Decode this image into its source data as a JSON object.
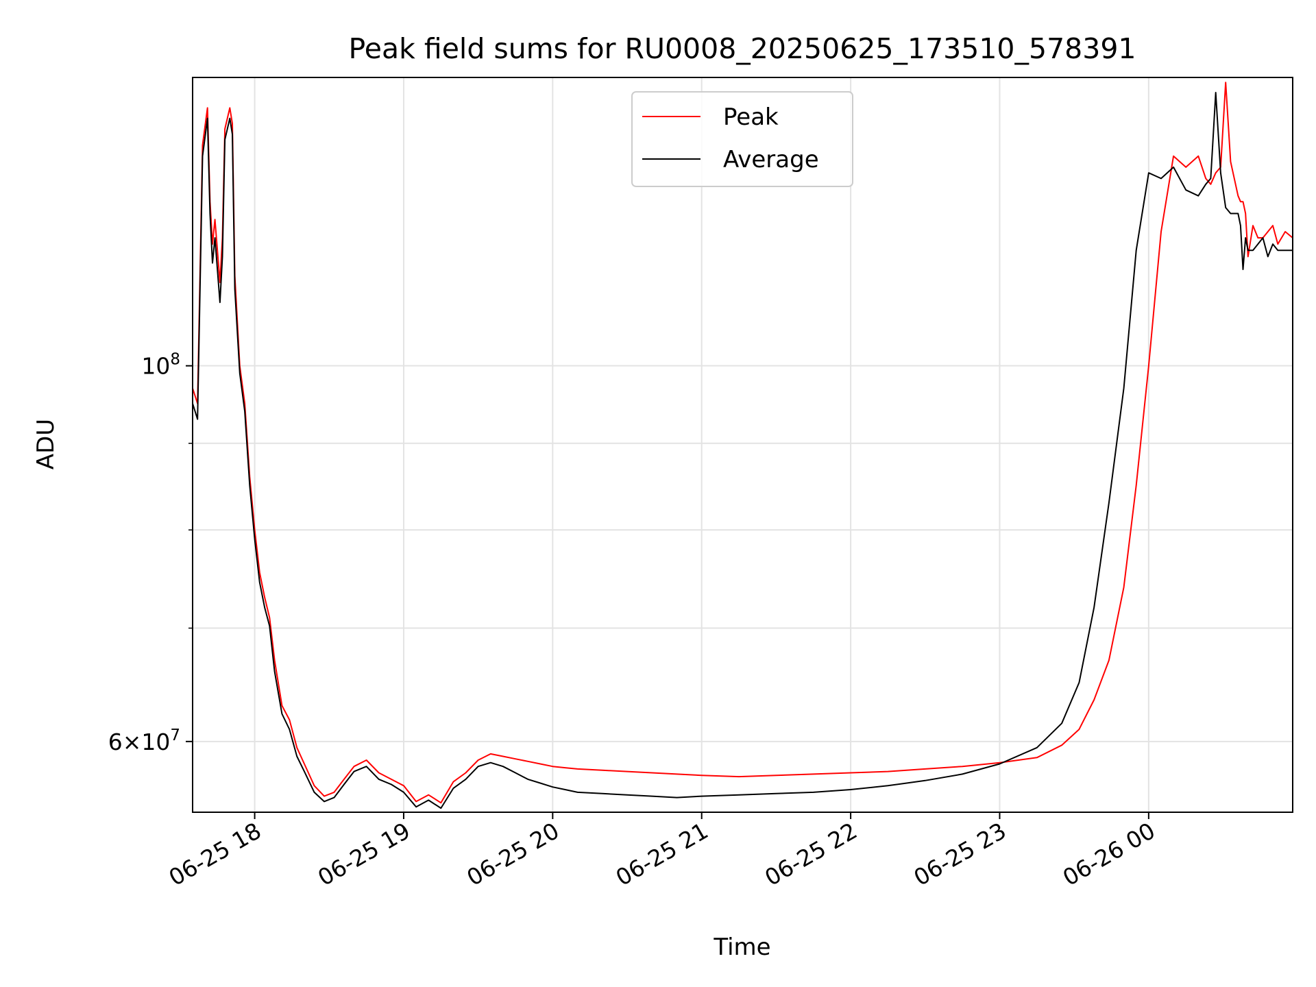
{
  "chart_data": {
    "type": "line",
    "title": "Peak field sums for RU0008_20250625_173510_578391",
    "xlabel": "Time",
    "ylabel": "ADU",
    "yscale": "log",
    "xlim": [
      "2025-06-25 17:35",
      "2025-06-26 00:58"
    ],
    "ylim": [
      54500000,
      148000000
    ],
    "grid": true,
    "legend_position": "upper center",
    "x_ticks": [
      "06-25 18",
      "06-25 19",
      "06-25 20",
      "06-25 21",
      "06-25 22",
      "06-25 23",
      "06-26 00"
    ],
    "y_tick_labels": [
      {
        "value": 100000000,
        "base": "10",
        "exp": "8"
      },
      {
        "value": 60000000,
        "mantissa": "6",
        "base": "10",
        "exp": "7"
      }
    ],
    "y_minor_ticks": [
      70000000,
      80000000,
      90000000
    ],
    "colors": {
      "Peak": "#ff0000",
      "Average": "#000000"
    },
    "x": [
      "2025-06-25 17:35",
      "2025-06-25 17:37",
      "2025-06-25 17:39",
      "2025-06-25 17:41",
      "2025-06-25 17:42",
      "2025-06-25 17:43",
      "2025-06-25 17:44",
      "2025-06-25 17:46",
      "2025-06-25 17:47",
      "2025-06-25 17:48",
      "2025-06-25 17:50",
      "2025-06-25 17:51",
      "2025-06-25 17:52",
      "2025-06-25 17:54",
      "2025-06-25 17:56",
      "2025-06-25 17:58",
      "2025-06-25 18:00",
      "2025-06-25 18:02",
      "2025-06-25 18:04",
      "2025-06-25 18:06",
      "2025-06-25 18:08",
      "2025-06-25 18:11",
      "2025-06-25 18:14",
      "2025-06-25 18:17",
      "2025-06-25 18:20",
      "2025-06-25 18:24",
      "2025-06-25 18:28",
      "2025-06-25 18:32",
      "2025-06-25 18:36",
      "2025-06-25 18:40",
      "2025-06-25 18:45",
      "2025-06-25 18:50",
      "2025-06-25 18:55",
      "2025-06-25 19:00",
      "2025-06-25 19:05",
      "2025-06-25 19:10",
      "2025-06-25 19:15",
      "2025-06-25 19:20",
      "2025-06-25 19:25",
      "2025-06-25 19:30",
      "2025-06-25 19:35",
      "2025-06-25 19:40",
      "2025-06-25 19:45",
      "2025-06-25 19:50",
      "2025-06-25 19:55",
      "2025-06-25 20:00",
      "2025-06-25 20:05",
      "2025-06-25 20:10",
      "2025-06-25 20:20",
      "2025-06-25 20:30",
      "2025-06-25 20:40",
      "2025-06-25 20:50",
      "2025-06-25 21:00",
      "2025-06-25 21:15",
      "2025-06-25 21:30",
      "2025-06-25 21:45",
      "2025-06-25 22:00",
      "2025-06-25 22:15",
      "2025-06-25 22:30",
      "2025-06-25 22:45",
      "2025-06-25 23:00",
      "2025-06-25 23:15",
      "2025-06-25 23:25",
      "2025-06-25 23:32",
      "2025-06-25 23:38",
      "2025-06-25 23:44",
      "2025-06-25 23:50",
      "2025-06-25 23:55",
      "2025-06-26 00:00",
      "2025-06-26 00:05",
      "2025-06-26 00:10",
      "2025-06-26 00:15",
      "2025-06-26 00:20",
      "2025-06-26 00:23",
      "2025-06-26 00:25",
      "2025-06-26 00:27",
      "2025-06-26 00:29",
      "2025-06-26 00:31",
      "2025-06-26 00:33",
      "2025-06-26 00:36",
      "2025-06-26 00:37",
      "2025-06-26 00:38",
      "2025-06-26 00:39",
      "2025-06-26 00:40",
      "2025-06-26 00:42",
      "2025-06-26 00:44",
      "2025-06-26 00:46",
      "2025-06-26 00:48",
      "2025-06-26 00:50",
      "2025-06-26 00:52",
      "2025-06-26 00:55",
      "2025-06-26 00:58"
    ],
    "series": [
      {
        "name": "Peak",
        "values": [
          97000000,
          95000000,
          135000000,
          142000000,
          125000000,
          118000000,
          122000000,
          112000000,
          119000000,
          138000000,
          142000000,
          139000000,
          113000000,
          100000000,
          95000000,
          86000000,
          80000000,
          75500000,
          73000000,
          71000000,
          67000000,
          63000000,
          61800000,
          59500000,
          58200000,
          56500000,
          55700000,
          56000000,
          57000000,
          58000000,
          58500000,
          57500000,
          57000000,
          56500000,
          55300000,
          55800000,
          55200000,
          56800000,
          57500000,
          58500000,
          59000000,
          58800000,
          58600000,
          58400000,
          58200000,
          58000000,
          57900000,
          57800000,
          57700000,
          57600000,
          57500000,
          57400000,
          57300000,
          57200000,
          57300000,
          57400000,
          57500000,
          57600000,
          57800000,
          58000000,
          58300000,
          58700000,
          59700000,
          61000000,
          63500000,
          67000000,
          74000000,
          85000000,
          100000000,
          120000000,
          133000000,
          131000000,
          133000000,
          129000000,
          128000000,
          130000000,
          131000000,
          147000000,
          132000000,
          126000000,
          125000000,
          125000000,
          123000000,
          116000000,
          121000000,
          119000000,
          119000000,
          120000000,
          121000000,
          118000000,
          120000000,
          119000000
        ]
      },
      {
        "name": "Average",
        "values": [
          95000000,
          93000000,
          133000000,
          140000000,
          123000000,
          115000000,
          119000000,
          109000000,
          116000000,
          136000000,
          140000000,
          137000000,
          111000000,
          99000000,
          94000000,
          85000000,
          79000000,
          74500000,
          72000000,
          70200000,
          66000000,
          62300000,
          61000000,
          58800000,
          57600000,
          56000000,
          55300000,
          55600000,
          56600000,
          57600000,
          58000000,
          57000000,
          56600000,
          56000000,
          54900000,
          55400000,
          54800000,
          56300000,
          57000000,
          58000000,
          58300000,
          58000000,
          57500000,
          57000000,
          56700000,
          56400000,
          56200000,
          56000000,
          55900000,
          55800000,
          55700000,
          55600000,
          55700000,
          55800000,
          55900000,
          56000000,
          56200000,
          56500000,
          56900000,
          57400000,
          58200000,
          59500000,
          61500000,
          65000000,
          72000000,
          83000000,
          97000000,
          117000000,
          130000000,
          129000000,
          131000000,
          127000000,
          126000000,
          128000000,
          129000000,
          145000000,
          130000000,
          124000000,
          123000000,
          123000000,
          121000000,
          114000000,
          119000000,
          117000000,
          117000000,
          118000000,
          119000000,
          116000000,
          118000000,
          117000000,
          117000000,
          117000000
        ]
      }
    ],
    "spikes_note": ""
  }
}
